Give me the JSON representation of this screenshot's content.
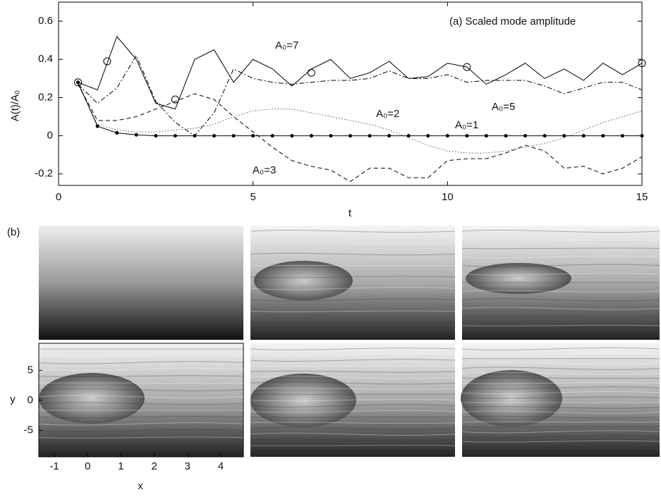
{
  "chart_data": [
    {
      "type": "line",
      "title": "(a) Scaled mode amplitude",
      "x_label": "t",
      "y_label": "A(t)/A₀",
      "x": [
        0.5,
        1,
        1.5,
        2,
        2.5,
        3,
        3.5,
        4,
        4.5,
        5,
        5.5,
        6,
        6.5,
        7,
        7.5,
        8,
        8.5,
        9,
        9.5,
        10,
        10.5,
        11,
        11.5,
        12,
        12.5,
        13,
        13.5,
        14,
        14.5,
        15
      ],
      "series": [
        {
          "name": "A₀=7",
          "color": "#000000",
          "style": "solid",
          "values": [
            0.28,
            0.24,
            0.52,
            0.4,
            0.17,
            0.14,
            0.4,
            0.45,
            0.28,
            0.4,
            0.35,
            0.26,
            0.35,
            0.4,
            0.3,
            0.33,
            0.39,
            0.3,
            0.31,
            0.38,
            0.36,
            0.27,
            0.32,
            0.38,
            0.3,
            0.35,
            0.29,
            0.38,
            0.32,
            0.38
          ]
        },
        {
          "name": "A₀=5",
          "color": "#000000",
          "style": "dashdot",
          "values": [
            0.27,
            0.17,
            0.25,
            0.42,
            0.18,
            0.07,
            0.0,
            0.12,
            0.35,
            0.3,
            0.28,
            0.27,
            0.28,
            0.29,
            0.29,
            0.3,
            0.34,
            0.3,
            0.3,
            0.32,
            0.28,
            0.29,
            0.29,
            0.29,
            0.26,
            0.22,
            0.25,
            0.28,
            0.28,
            0.24
          ]
        },
        {
          "name": "A₀=3",
          "color": "#000000",
          "style": "dashed",
          "values": [
            0.27,
            0.08,
            0.08,
            0.1,
            0.14,
            0.18,
            0.22,
            0.19,
            0.1,
            0.02,
            -0.06,
            -0.13,
            -0.16,
            -0.18,
            -0.24,
            -0.17,
            -0.17,
            -0.22,
            -0.22,
            -0.13,
            -0.12,
            -0.12,
            -0.09,
            -0.05,
            -0.08,
            -0.17,
            -0.16,
            -0.2,
            -0.17,
            -0.11
          ]
        },
        {
          "name": "A₀=2",
          "color": "#555555",
          "style": "dotted",
          "values": [
            0.27,
            0.06,
            0.03,
            0.02,
            0.02,
            0.03,
            0.04,
            0.06,
            0.1,
            0.13,
            0.14,
            0.14,
            0.12,
            0.1,
            0.08,
            0.06,
            0.03,
            -0.01,
            -0.05,
            -0.08,
            -0.09,
            -0.09,
            -0.08,
            -0.06,
            -0.04,
            -0.01,
            0.03,
            0.07,
            0.1,
            0.13
          ]
        },
        {
          "name": "A₀=1",
          "color": "#000000",
          "style": "solid",
          "marker": "dot",
          "values": [
            0.28,
            0.05,
            0.015,
            0.005,
            0,
            0,
            0,
            0,
            0,
            0,
            0,
            0,
            0,
            0,
            0,
            0,
            0,
            0,
            0,
            0,
            0,
            0,
            0,
            0,
            0,
            0,
            0,
            0,
            0,
            0
          ]
        }
      ],
      "snapshots": {
        "x": [
          0.5,
          1.25,
          3.0,
          6.5,
          10.5,
          15.0
        ],
        "values": [
          0.28,
          0.39,
          0.19,
          0.33,
          0.36,
          0.38
        ]
      },
      "xlim": [
        0,
        15
      ],
      "ylim": [
        -0.26,
        0.7
      ],
      "xticks": [
        0,
        5,
        10,
        15
      ],
      "yticks": [
        0.6,
        0.4,
        0.2,
        0,
        -0.2
      ]
    },
    {
      "type": "image",
      "title": "(b)",
      "x_label": "x",
      "y_label": "y",
      "xlim": [
        -1.47,
        4.68
      ],
      "ylim": [
        -9.4,
        9.5
      ],
      "xticks": [
        -1,
        0,
        1,
        2,
        3,
        4
      ],
      "yticks": [
        5,
        0,
        -5
      ]
    }
  ]
}
